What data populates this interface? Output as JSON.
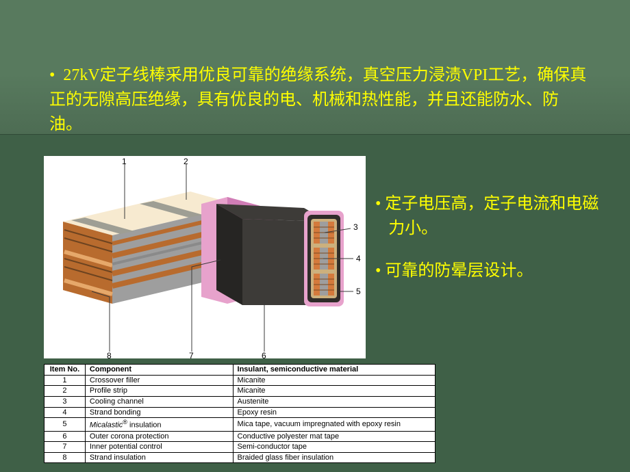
{
  "intro": {
    "bullet": "•",
    "text": " 27kV定子线棒采用优良可靠的绝缘系统，真空压力浸渍VPI工艺，确保真正的无隙高压绝缘，具有优良的电、机械和热性能，并且还能防水、防油。"
  },
  "side_bullets": {
    "b1": "• 定子电压高，定子电流和电磁力小。",
    "b2": "• 可靠的防晕层设计。"
  },
  "diagram": {
    "background": "#ffffff",
    "top_face": "#f7ead0",
    "core_strip": "#b86b2e",
    "core_highlight": "#e6a86a",
    "core_groove": "#6c4320",
    "interlayer": "#9e9e9e",
    "profile_strip": "#9e9e94",
    "corona_cover": "#3d3b38",
    "corona_shadow": "#262523",
    "pink_insul": "#e7a2cc",
    "pink_insul_dark": "#d07db6",
    "front_pink_outer": "#e7a2cc",
    "front_black_mid": "#2f2c29",
    "front_tan_inner": "#ccb07d",
    "front_channel": "#9e9e9e",
    "front_strand": "#d47a3c",
    "callout_line": "#3a3a3a",
    "callout_text": "#000000",
    "callout_fontsize": 12,
    "callouts": {
      "1": "1",
      "2": "2",
      "3": "3",
      "4": "4",
      "5": "5",
      "6": "6",
      "7": "7",
      "8": "8"
    }
  },
  "table": {
    "headers": {
      "c1": "Item No.",
      "c2": "Component",
      "c3": "Insulant, semiconductive material"
    },
    "rows": [
      {
        "n": "1",
        "comp": "Crossover filler",
        "mat": "Micanite"
      },
      {
        "n": "2",
        "comp": "Profile strip",
        "mat": "Micanite"
      },
      {
        "n": "3",
        "comp": "Cooling channel",
        "mat": "Austenite"
      },
      {
        "n": "4",
        "comp": "Strand bonding",
        "mat": "Epoxy resin"
      },
      {
        "n": "5",
        "comp_html": "<i>Micalastic</i><sup>®</sup> insulation",
        "mat": "Mica tape, vacuum impregnated with epoxy resin"
      },
      {
        "n": "6",
        "comp": "Outer corona protection",
        "mat": "Conductive polyester mat tape"
      },
      {
        "n": "7",
        "comp": "Inner potential control",
        "mat": "Semi-conductor tape"
      },
      {
        "n": "8",
        "comp": "Strand insulation",
        "mat": "Braided glass fiber insulation"
      }
    ]
  }
}
